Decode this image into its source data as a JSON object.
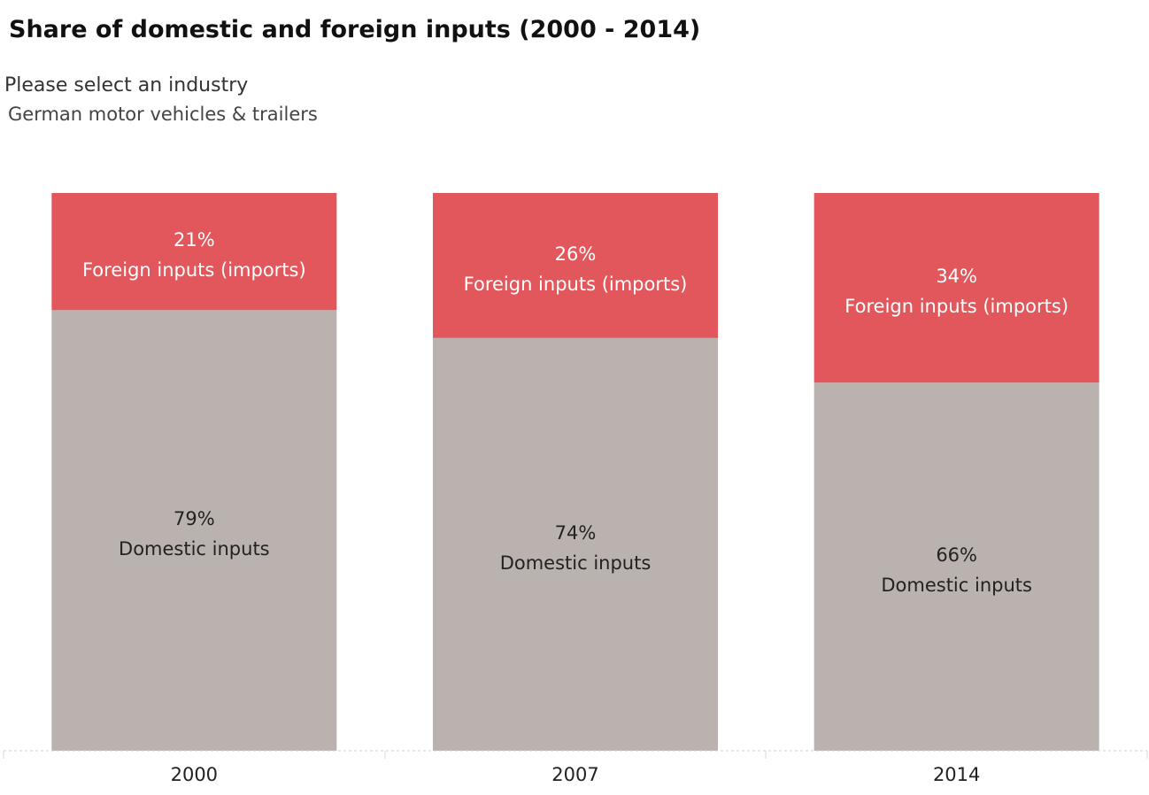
{
  "page": {
    "title": "Share of domestic and foreign inputs (2000 - 2014)",
    "filter": {
      "label": "Please select an industry",
      "value": "German motor vehicles & trailers"
    }
  },
  "chart_data": {
    "type": "bar",
    "stacked": true,
    "categories": [
      "2000",
      "2007",
      "2014"
    ],
    "series": [
      {
        "name": "Domestic inputs",
        "values": [
          79,
          74,
          66
        ],
        "labels": [
          "79%",
          "74%",
          "66%"
        ],
        "color": "#bab2af",
        "text_color": "#222222"
      },
      {
        "name": "Foreign inputs (imports)",
        "values": [
          21,
          26,
          34
        ],
        "labels": [
          "21%",
          "26%",
          "34%"
        ],
        "color": "#e2575b",
        "text_color": "#ffffff"
      }
    ],
    "ylim": [
      0,
      100
    ],
    "xlabel": "",
    "ylabel": "",
    "grid": false,
    "legend": "none"
  }
}
